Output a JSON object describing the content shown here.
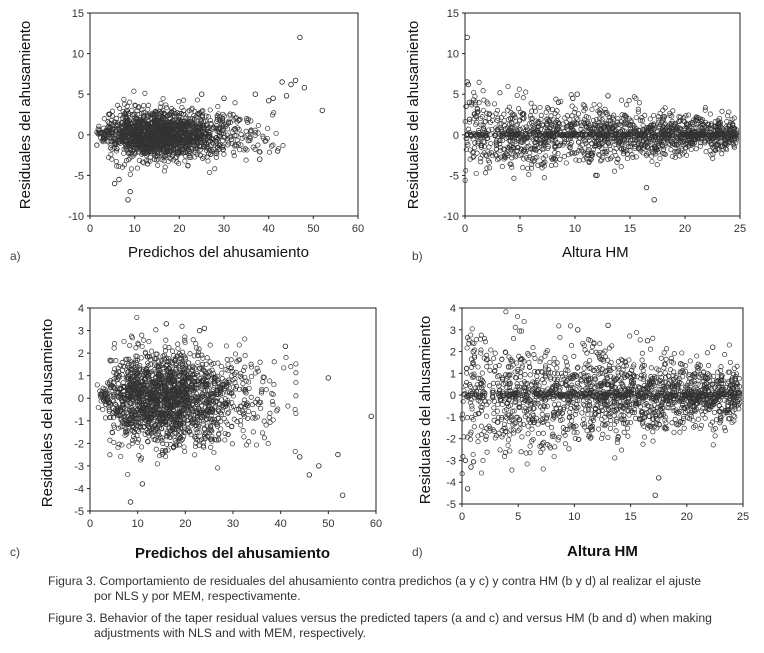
{
  "chart_data": [
    {
      "type": "scatter",
      "panel_label": "a)",
      "title": "",
      "xlabel": "Predichos del ahusamiento",
      "ylabel": "Residuales del ahusamiento",
      "xlim": [
        0,
        60
      ],
      "ylim": [
        -10,
        15
      ],
      "xticks": [
        "0",
        "10",
        "20",
        "30",
        "40",
        "50",
        "60"
      ],
      "yticks": [
        "-10",
        "-5",
        "0",
        "5",
        "10",
        "15"
      ],
      "outliers": {
        "x": [
          47,
          52,
          43,
          45,
          46,
          48,
          37,
          40,
          41,
          30,
          25,
          8.5,
          9,
          5.5,
          6.5,
          38,
          42,
          44
        ],
        "y": [
          12,
          3,
          6.5,
          6.2,
          6.7,
          5.8,
          5,
          4.2,
          4.5,
          4.5,
          5,
          -8,
          -7,
          -6,
          -5.5,
          -3,
          -2,
          4.8
        ]
      }
    },
    {
      "type": "scatter",
      "panel_label": "b)",
      "title": "",
      "xlabel": "Altura HM",
      "ylabel": "Residuales del ahusamiento",
      "xlim": [
        0,
        25
      ],
      "ylim": [
        -10,
        15
      ],
      "xticks": [
        "0",
        "5",
        "10",
        "15",
        "20",
        "25"
      ],
      "yticks": [
        "-10",
        "-5",
        "0",
        "5",
        "10",
        "15"
      ],
      "outliers": {
        "x": [
          0.2,
          0.2,
          0.3,
          0.4,
          0.1,
          10.2,
          13,
          17.2,
          16.5,
          9.8,
          12,
          8.5
        ],
        "y": [
          12,
          6.5,
          6.2,
          4,
          3.5,
          5,
          4.8,
          -8,
          -6.5,
          4.5,
          -5,
          4
        ]
      }
    },
    {
      "type": "scatter",
      "panel_label": "c)",
      "title": "",
      "xlabel": "Predichos del ahusamiento",
      "ylabel": "Residuales del ahusamiento",
      "xlim": [
        0,
        60
      ],
      "ylim": [
        -5,
        4
      ],
      "xticks": [
        "0",
        "10",
        "20",
        "30",
        "40",
        "50",
        "60"
      ],
      "yticks": [
        "-5",
        "-4",
        "-3",
        "-2",
        "-1",
        "0",
        "1",
        "2",
        "3",
        "4"
      ],
      "outliers": {
        "x": [
          8.5,
          11,
          16,
          23,
          24,
          53,
          59,
          50,
          48,
          52,
          41,
          44,
          46
        ],
        "y": [
          -4.6,
          -3.8,
          3.3,
          3.0,
          3.1,
          -4.3,
          -0.8,
          0.9,
          -3.0,
          -2.5,
          2.3,
          -2.6,
          -3.4
        ],
        "labeled_noise": true
      }
    },
    {
      "type": "scatter",
      "panel_label": "d)",
      "title": "",
      "xlabel": "Altura HM",
      "ylabel": "Residuales del ahusamiento",
      "xlim": [
        0,
        25
      ],
      "ylim": [
        -5,
        4
      ],
      "xticks": [
        "0",
        "5",
        "10",
        "15",
        "20",
        "25"
      ],
      "yticks": [
        "-5",
        "-4",
        "-3",
        "-2",
        "-1",
        "0",
        "1",
        "2",
        "3",
        "4"
      ],
      "outliers": {
        "x": [
          17.2,
          0.5,
          0.3,
          10.3,
          13,
          16.5,
          22.3,
          17.5,
          1,
          0.8
        ],
        "y": [
          -4.6,
          -4.3,
          -3.0,
          3.0,
          3.2,
          2.5,
          2.2,
          -3.8,
          2.0,
          -3.3
        ]
      }
    }
  ],
  "caption": {
    "es_line1": "Figura 3. Comportamiento de residuales del ahusamiento contra predichos (a y c) y contra HM (b y d) al realizar el ajuste",
    "es_line2": "por NLS y por MEM, respectivamente.",
    "en_line1": "Figure 3. Behavior of the taper residual values versus the predicted tapers (a and c) and versus HM (b and d) when making",
    "en_line2": "adjustments with NLS and with MEM, respectively."
  }
}
